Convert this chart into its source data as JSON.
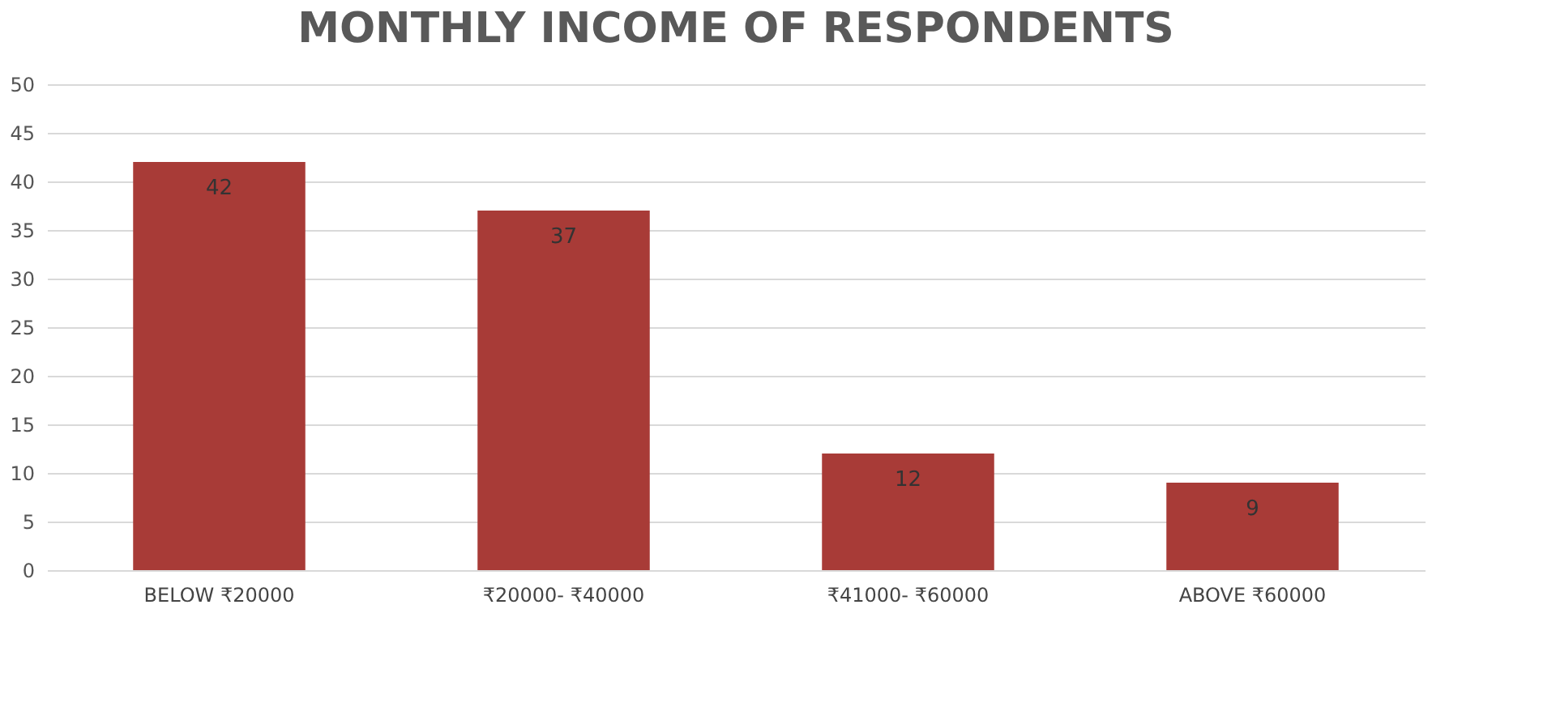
{
  "chart_data": {
    "type": "bar",
    "title": "MONTHLY INCOME OF RESPONDENTS",
    "categories": [
      "BELOW  ₹20000",
      "₹20000- ₹40000",
      "₹41000- ₹60000",
      "ABOVE ₹60000"
    ],
    "values": [
      42,
      37,
      12,
      9
    ],
    "color": "#a83b37",
    "ylim": [
      0,
      50
    ],
    "yticks": [
      0,
      5,
      10,
      15,
      20,
      25,
      30,
      35,
      40,
      45,
      50
    ],
    "grid": "y",
    "data_labels": true
  }
}
